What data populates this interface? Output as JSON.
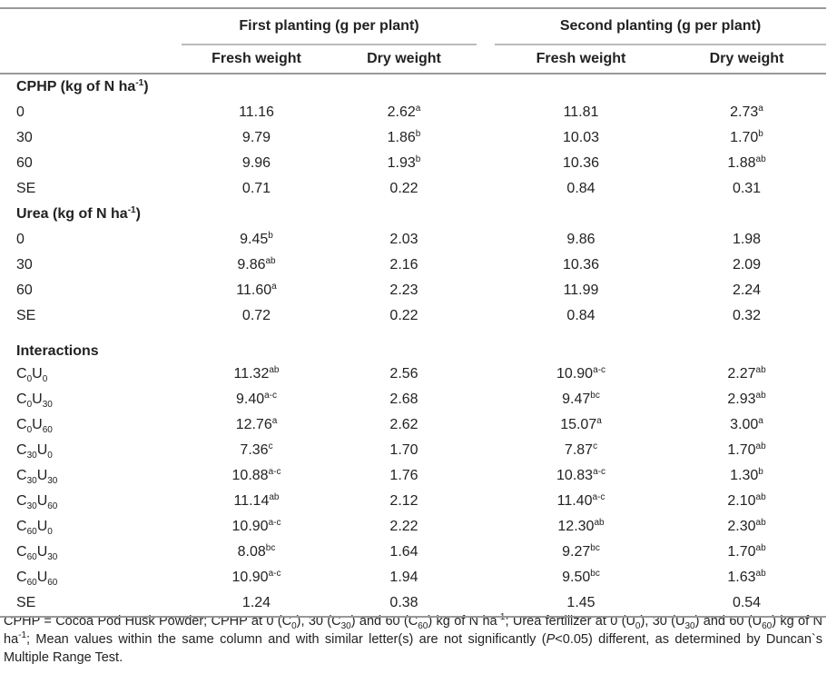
{
  "header": {
    "groups": [
      "First planting (g per plant)",
      "Second planting (g per plant)"
    ],
    "columns": [
      "Fresh weight",
      "Dry weight",
      "Fresh weight",
      "Dry weight"
    ]
  },
  "sections": [
    {
      "title": [
        {
          "t": "CPHP (kg of N ha"
        },
        {
          "sup": "-1"
        },
        {
          "t": ")"
        }
      ],
      "rows": [
        {
          "label": [
            {
              "t": "0"
            }
          ],
          "cells": [
            [
              {
                "t": "11.16"
              }
            ],
            [
              {
                "t": "2.62"
              },
              {
                "sup": "a"
              }
            ],
            [
              {
                "t": "11.81"
              }
            ],
            [
              {
                "t": "2.73"
              },
              {
                "sup": "a"
              }
            ]
          ]
        },
        {
          "label": [
            {
              "t": "30"
            }
          ],
          "cells": [
            [
              {
                "t": "9.79"
              }
            ],
            [
              {
                "t": "1.86"
              },
              {
                "sup": "b"
              }
            ],
            [
              {
                "t": "10.03"
              }
            ],
            [
              {
                "t": "1.70"
              },
              {
                "sup": "b"
              }
            ]
          ]
        },
        {
          "label": [
            {
              "t": "60"
            }
          ],
          "cells": [
            [
              {
                "t": "9.96"
              }
            ],
            [
              {
                "t": "1.93"
              },
              {
                "sup": "b"
              }
            ],
            [
              {
                "t": "10.36"
              }
            ],
            [
              {
                "t": "1.88"
              },
              {
                "sup": "ab"
              }
            ]
          ]
        },
        {
          "label": [
            {
              "t": "SE"
            }
          ],
          "cells": [
            [
              {
                "t": "0.71"
              }
            ],
            [
              {
                "t": "0.22"
              }
            ],
            [
              {
                "t": "0.84"
              }
            ],
            [
              {
                "t": "0.31"
              }
            ]
          ]
        }
      ]
    },
    {
      "title": [
        {
          "t": "Urea (kg of N ha"
        },
        {
          "sup": "-1"
        },
        {
          "t": ")"
        }
      ],
      "rows": [
        {
          "label": [
            {
              "t": "0"
            }
          ],
          "cells": [
            [
              {
                "t": "9.45"
              },
              {
                "sup": "b"
              }
            ],
            [
              {
                "t": "2.03"
              }
            ],
            [
              {
                "t": "9.86"
              }
            ],
            [
              {
                "t": "1.98"
              }
            ]
          ]
        },
        {
          "label": [
            {
              "t": "30"
            }
          ],
          "cells": [
            [
              {
                "t": "9.86"
              },
              {
                "sup": "ab"
              }
            ],
            [
              {
                "t": "2.16"
              }
            ],
            [
              {
                "t": "10.36"
              }
            ],
            [
              {
                "t": "2.09"
              }
            ]
          ]
        },
        {
          "label": [
            {
              "t": "60"
            }
          ],
          "cells": [
            [
              {
                "t": "11.60"
              },
              {
                "sup": "a"
              }
            ],
            [
              {
                "t": "2.23"
              }
            ],
            [
              {
                "t": "11.99"
              }
            ],
            [
              {
                "t": "2.24"
              }
            ]
          ]
        },
        {
          "label": [
            {
              "t": "SE"
            }
          ],
          "cells": [
            [
              {
                "t": "0.72"
              }
            ],
            [
              {
                "t": "0.22"
              }
            ],
            [
              {
                "t": "0.84"
              }
            ],
            [
              {
                "t": "0.32"
              }
            ]
          ]
        }
      ]
    },
    {
      "title": [
        {
          "t": "Interactions"
        }
      ],
      "rows": [
        {
          "label": [
            {
              "t": "C"
            },
            {
              "sub": "0"
            },
            {
              "t": "U"
            },
            {
              "sub": "0"
            }
          ],
          "cells": [
            [
              {
                "t": "11.32"
              },
              {
                "sup": "ab"
              }
            ],
            [
              {
                "t": "2.56"
              }
            ],
            [
              {
                "t": "10.90"
              },
              {
                "sup": "a-c"
              }
            ],
            [
              {
                "t": "2.27"
              },
              {
                "sup": "ab"
              }
            ]
          ]
        },
        {
          "label": [
            {
              "t": "C"
            },
            {
              "sub": "0"
            },
            {
              "t": "U"
            },
            {
              "sub": "30"
            }
          ],
          "cells": [
            [
              {
                "t": "9.40"
              },
              {
                "sup": "a-c"
              }
            ],
            [
              {
                "t": "2.68"
              }
            ],
            [
              {
                "t": "9.47"
              },
              {
                "sup": "bc"
              }
            ],
            [
              {
                "t": "2.93"
              },
              {
                "sup": "ab"
              }
            ]
          ]
        },
        {
          "label": [
            {
              "t": "C"
            },
            {
              "sub": "0"
            },
            {
              "t": "U"
            },
            {
              "sub": "60"
            }
          ],
          "cells": [
            [
              {
                "t": "12.76"
              },
              {
                "sup": "a"
              }
            ],
            [
              {
                "t": "2.62"
              }
            ],
            [
              {
                "t": "15.07"
              },
              {
                "sup": "a"
              }
            ],
            [
              {
                "t": "3.00"
              },
              {
                "sup": "a"
              }
            ]
          ]
        },
        {
          "label": [
            {
              "t": "C"
            },
            {
              "sub": "30"
            },
            {
              "t": "U"
            },
            {
              "sub": "0"
            }
          ],
          "cells": [
            [
              {
                "t": "7.36"
              },
              {
                "sup": "c"
              }
            ],
            [
              {
                "t": "1.70"
              }
            ],
            [
              {
                "t": "7.87"
              },
              {
                "sup": "c"
              }
            ],
            [
              {
                "t": "1.70"
              },
              {
                "sup": "ab"
              }
            ]
          ]
        },
        {
          "label": [
            {
              "t": "C"
            },
            {
              "sub": "30"
            },
            {
              "t": "U"
            },
            {
              "sub": "30"
            }
          ],
          "cells": [
            [
              {
                "t": "10.88"
              },
              {
                "sup": "a-c"
              }
            ],
            [
              {
                "t": "1.76"
              }
            ],
            [
              {
                "t": "10.83"
              },
              {
                "sup": "a-c"
              }
            ],
            [
              {
                "t": "1.30"
              },
              {
                "sup": "b"
              }
            ]
          ]
        },
        {
          "label": [
            {
              "t": "C"
            },
            {
              "sub": "30"
            },
            {
              "t": "U"
            },
            {
              "sub": "60"
            }
          ],
          "cells": [
            [
              {
                "t": "11.14"
              },
              {
                "sup": "ab"
              }
            ],
            [
              {
                "t": "2.12"
              }
            ],
            [
              {
                "t": "11.40"
              },
              {
                "sup": "a-c"
              }
            ],
            [
              {
                "t": "2.10"
              },
              {
                "sup": "ab"
              }
            ]
          ]
        },
        {
          "label": [
            {
              "t": "C"
            },
            {
              "sub": "60"
            },
            {
              "t": "U"
            },
            {
              "sub": "0"
            }
          ],
          "cells": [
            [
              {
                "t": "10.90"
              },
              {
                "sup": "a-c"
              }
            ],
            [
              {
                "t": "2.22"
              }
            ],
            [
              {
                "t": "12.30"
              },
              {
                "sup": "ab"
              }
            ],
            [
              {
                "t": "2.30"
              },
              {
                "sup": "ab"
              }
            ]
          ]
        },
        {
          "label": [
            {
              "t": "C"
            },
            {
              "sub": "60"
            },
            {
              "t": "U"
            },
            {
              "sub": "30"
            }
          ],
          "cells": [
            [
              {
                "t": "8.08"
              },
              {
                "sup": "bc"
              }
            ],
            [
              {
                "t": "1.64"
              }
            ],
            [
              {
                "t": "9.27"
              },
              {
                "sup": "bc"
              }
            ],
            [
              {
                "t": "1.70"
              },
              {
                "sup": "ab"
              }
            ]
          ]
        },
        {
          "label": [
            {
              "t": "C"
            },
            {
              "sub": "60"
            },
            {
              "t": "U"
            },
            {
              "sub": "60"
            }
          ],
          "cells": [
            [
              {
                "t": "10.90"
              },
              {
                "sup": "a-c"
              }
            ],
            [
              {
                "t": "1.94"
              }
            ],
            [
              {
                "t": "9.50"
              },
              {
                "sup": "bc"
              }
            ],
            [
              {
                "t": "1.63"
              },
              {
                "sup": "ab"
              }
            ]
          ]
        },
        {
          "label": [
            {
              "t": "SE"
            }
          ],
          "cells": [
            [
              {
                "t": "1.24"
              }
            ],
            [
              {
                "t": "0.38"
              }
            ],
            [
              {
                "t": "1.45"
              }
            ],
            [
              {
                "t": "0.54"
              }
            ]
          ]
        }
      ]
    }
  ],
  "footnote": [
    {
      "t": "CPHP = Cocoa Pod Husk Powder; CPHP at 0 (C"
    },
    {
      "sub": "0"
    },
    {
      "t": "), 30 (C"
    },
    {
      "sub": "30"
    },
    {
      "t": ") and 60 (C"
    },
    {
      "sub": "60"
    },
    {
      "t": ") kg of N ha"
    },
    {
      "sup": "-1"
    },
    {
      "t": "; Urea fertilizer at 0 (U"
    },
    {
      "sub": "0"
    },
    {
      "t": "), 30 (U"
    },
    {
      "sub": "30"
    },
    {
      "t": ") and 60 (U"
    },
    {
      "sub": "60"
    },
    {
      "t": ") kg of N ha"
    },
    {
      "sup": "-1"
    },
    {
      "t": "; Mean values within the same column and with similar letter(s) are not significantly ("
    },
    {
      "i": "P"
    },
    {
      "t": "<0.05) different, as determined by Duncan`s Multiple Range Test."
    }
  ]
}
